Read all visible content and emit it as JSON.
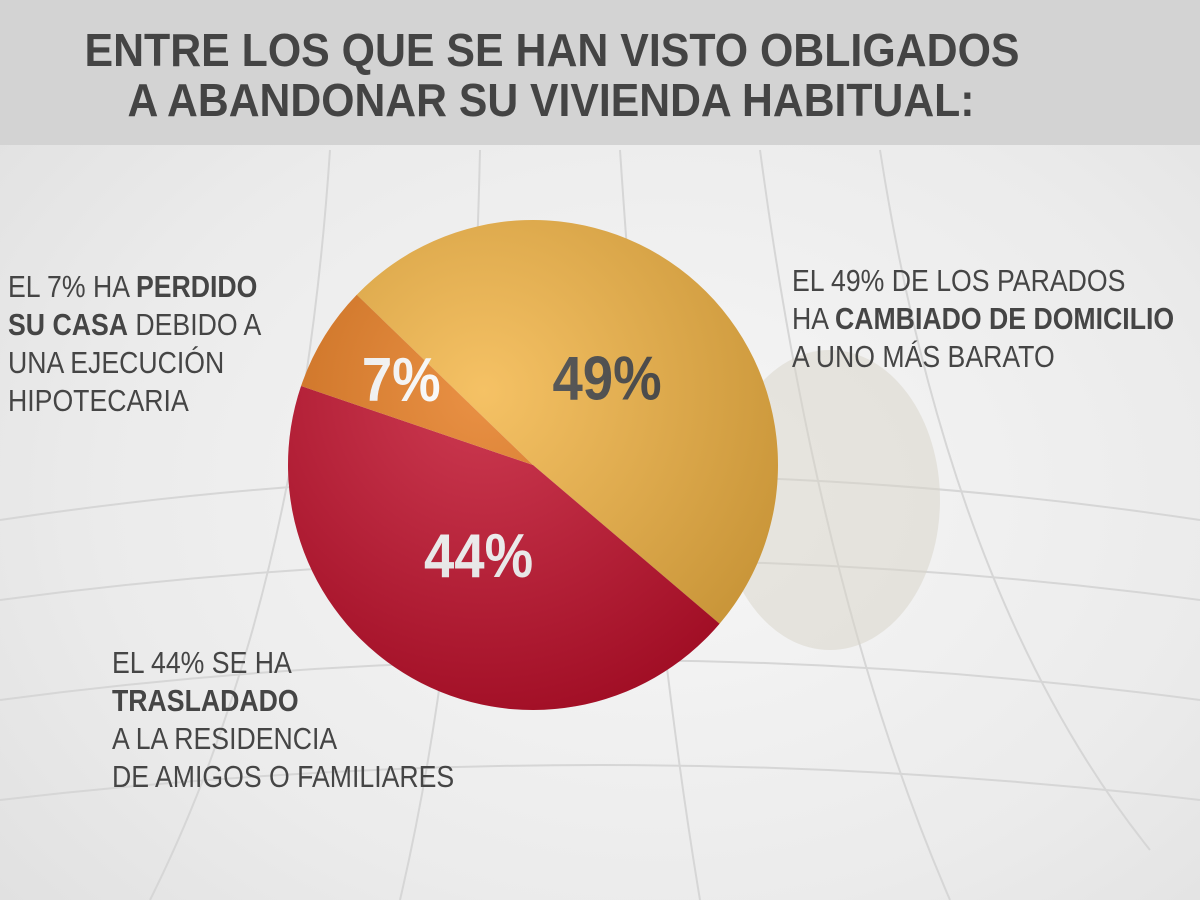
{
  "chart_data": {
    "type": "pie",
    "title": [
      "ENTRE LOS QUE SE HAN VISTO OBLIGADOS",
      "A ABANDONAR SU VIVIENDA HABITUAL:"
    ],
    "values": [
      49,
      44,
      7
    ],
    "value_labels": [
      "49%",
      "44%",
      "7%"
    ],
    "colors": [
      "#f3b443",
      "#c3102c",
      "#e5791c"
    ],
    "label_colors": [
      "#3f3f3f",
      "#ffffff",
      "#ffffff"
    ],
    "annotations": [
      {
        "lines": [
          [
            {
              "text": "EL 49% DE LOS PARADOS"
            }
          ],
          [
            {
              "text": "HA "
            },
            {
              "text": "CAMBIADO DE DOMICILIO",
              "bold": true
            }
          ],
          [
            {
              "text": "A UNO MÁS BARATO"
            }
          ]
        ]
      },
      {
        "lines": [
          [
            {
              "text": "EL 44% SE HA"
            }
          ],
          [
            {
              "text": "TRASLADADO",
              "bold": true
            }
          ],
          [
            {
              "text": "A LA RESIDENCIA"
            }
          ],
          [
            {
              "text": "DE AMIGOS O FAMILIARES"
            }
          ]
        ]
      },
      {
        "lines": [
          [
            {
              "text": "EL 7% HA "
            },
            {
              "text": "PERDIDO",
              "bold": true
            }
          ],
          [
            {
              "text": "SU CASA",
              "bold": true
            },
            {
              "text": " DEBIDO A"
            }
          ],
          [
            {
              "text": "UNA EJECUCIÓN"
            }
          ],
          [
            {
              "text": "HIPOTECARIA"
            }
          ]
        ]
      }
    ]
  }
}
